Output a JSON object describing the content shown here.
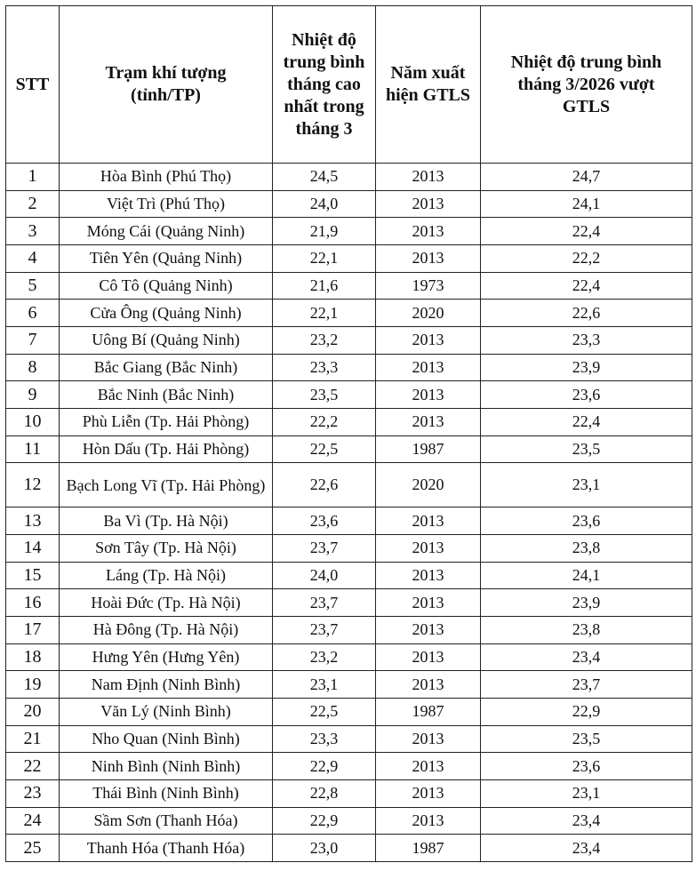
{
  "table": {
    "headers": {
      "stt": "STT",
      "station": "Trạm khí tượng (tỉnh/TP)",
      "max_avg": "Nhiệt độ trung bình tháng cao nhất trong tháng 3",
      "year": "Năm xuất hiện GTLS",
      "exceed": "Nhiệt độ trung bình tháng 3/2026 vượt GTLS"
    },
    "rows": [
      {
        "stt": "1",
        "station": "Hòa Bình (Phú Thọ)",
        "max_avg": "24,5",
        "year": "2013",
        "exceed": "24,7"
      },
      {
        "stt": "2",
        "station": "Việt Trì (Phú Thọ)",
        "max_avg": "24,0",
        "year": "2013",
        "exceed": "24,1"
      },
      {
        "stt": "3",
        "station": "Móng Cái (Quảng Ninh)",
        "max_avg": "21,9",
        "year": "2013",
        "exceed": "22,4"
      },
      {
        "stt": "4",
        "station": "Tiên Yên (Quảng Ninh)",
        "max_avg": "22,1",
        "year": "2013",
        "exceed": "22,2"
      },
      {
        "stt": "5",
        "station": "Cô Tô (Quảng Ninh)",
        "max_avg": "21,6",
        "year": "1973",
        "exceed": "22,4"
      },
      {
        "stt": "6",
        "station": "Cửa Ông (Quảng Ninh)",
        "max_avg": "22,1",
        "year": "2020",
        "exceed": "22,6"
      },
      {
        "stt": "7",
        "station": "Uông Bí (Quảng Ninh)",
        "max_avg": "23,2",
        "year": "2013",
        "exceed": "23,3"
      },
      {
        "stt": "8",
        "station": "Bắc Giang (Bắc Ninh)",
        "max_avg": "23,3",
        "year": "2013",
        "exceed": "23,9"
      },
      {
        "stt": "9",
        "station": "Bắc Ninh (Bắc Ninh)",
        "max_avg": "23,5",
        "year": "2013",
        "exceed": "23,6"
      },
      {
        "stt": "10",
        "station": "Phù Liễn (Tp. Hải Phòng)",
        "max_avg": "22,2",
        "year": "2013",
        "exceed": "22,4"
      },
      {
        "stt": "11",
        "station": "Hòn Dấu (Tp. Hải Phòng)",
        "max_avg": "22,5",
        "year": "1987",
        "exceed": "23,5"
      },
      {
        "stt": "12",
        "station": "Bạch Long Vĩ (Tp. Hải Phòng)",
        "max_avg": "22,6",
        "year": "2020",
        "exceed": "23,1"
      },
      {
        "stt": "13",
        "station": "Ba Vì (Tp. Hà Nội)",
        "max_avg": "23,6",
        "year": "2013",
        "exceed": "23,6"
      },
      {
        "stt": "14",
        "station": "Sơn Tây (Tp. Hà Nội)",
        "max_avg": "23,7",
        "year": "2013",
        "exceed": "23,8"
      },
      {
        "stt": "15",
        "station": "Láng (Tp. Hà Nội)",
        "max_avg": "24,0",
        "year": "2013",
        "exceed": "24,1"
      },
      {
        "stt": "16",
        "station": "Hoài Đức (Tp. Hà Nội)",
        "max_avg": "23,7",
        "year": "2013",
        "exceed": "23,9"
      },
      {
        "stt": "17",
        "station": "Hà Đông (Tp. Hà Nội)",
        "max_avg": "23,7",
        "year": "2013",
        "exceed": "23,8"
      },
      {
        "stt": "18",
        "station": "Hưng Yên (Hưng Yên)",
        "max_avg": "23,2",
        "year": "2013",
        "exceed": "23,4"
      },
      {
        "stt": "19",
        "station": "Nam Định (Ninh Bình)",
        "max_avg": "23,1",
        "year": "2013",
        "exceed": "23,7"
      },
      {
        "stt": "20",
        "station": "Văn Lý (Ninh Bình)",
        "max_avg": "22,5",
        "year": "1987",
        "exceed": "22,9"
      },
      {
        "stt": "21",
        "station": "Nho Quan (Ninh Bình)",
        "max_avg": "23,3",
        "year": "2013",
        "exceed": "23,5"
      },
      {
        "stt": "22",
        "station": "Ninh Bình (Ninh Bình)",
        "max_avg": "22,9",
        "year": "2013",
        "exceed": "23,6"
      },
      {
        "stt": "23",
        "station": "Thái Bình (Ninh Bình)",
        "max_avg": "22,8",
        "year": "2013",
        "exceed": "23,1"
      },
      {
        "stt": "24",
        "station": "Sầm Sơn (Thanh Hóa)",
        "max_avg": "22,9",
        "year": "2013",
        "exceed": "23,4"
      },
      {
        "stt": "25",
        "station": "Thanh Hóa (Thanh Hóa)",
        "max_avg": "23,0",
        "year": "1987",
        "exceed": "23,4"
      }
    ]
  }
}
